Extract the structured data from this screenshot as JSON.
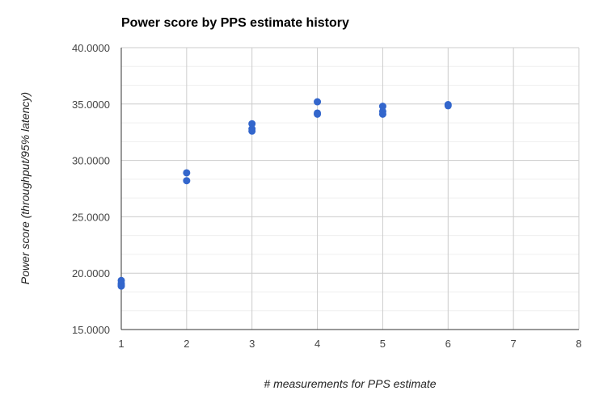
{
  "chart_data": {
    "type": "scatter",
    "title": "Power score by PPS estimate history",
    "xlabel": "# measurements for PPS estimate",
    "ylabel": "Power score (throughput/95% latency)",
    "xlim": [
      1,
      8
    ],
    "ylim": [
      15,
      40
    ],
    "x_ticks": [
      "1",
      "2",
      "3",
      "4",
      "5",
      "6",
      "7",
      "8"
    ],
    "y_ticks": [
      "15.0000",
      "20.0000",
      "25.0000",
      "30.0000",
      "35.0000",
      "40.0000"
    ],
    "grid": true,
    "legend": "none",
    "series": [
      {
        "color": "#3366cc",
        "points": [
          {
            "x": 1,
            "y": 19.35
          },
          {
            "x": 1,
            "y": 19.1
          },
          {
            "x": 1,
            "y": 18.95
          },
          {
            "x": 1,
            "y": 18.85
          },
          {
            "x": 2,
            "y": 28.9
          },
          {
            "x": 2,
            "y": 28.2
          },
          {
            "x": 3,
            "y": 33.25
          },
          {
            "x": 3,
            "y": 32.8
          },
          {
            "x": 3,
            "y": 32.6
          },
          {
            "x": 4,
            "y": 35.2
          },
          {
            "x": 4,
            "y": 34.2
          },
          {
            "x": 4,
            "y": 34.1
          },
          {
            "x": 5,
            "y": 34.8
          },
          {
            "x": 5,
            "y": 34.35
          },
          {
            "x": 5,
            "y": 34.1
          },
          {
            "x": 6,
            "y": 34.95
          },
          {
            "x": 6,
            "y": 34.85
          }
        ]
      }
    ]
  }
}
